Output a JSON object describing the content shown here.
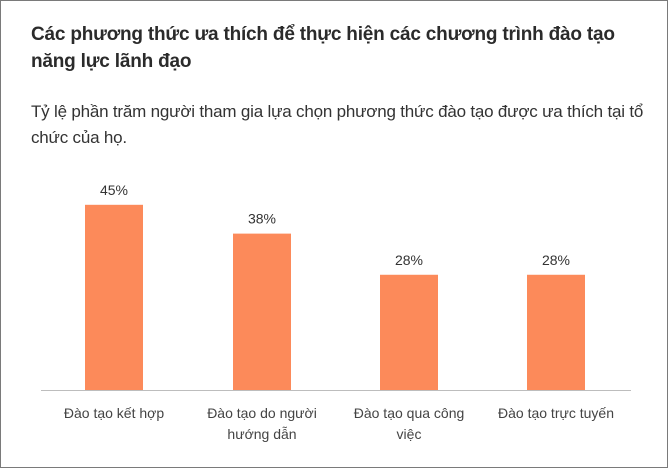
{
  "title": "Các phương thức ưa thích để thực hiện các chương trình đào tạo năng lực lãnh đạo",
  "subtitle": "Tỷ lệ phần trăm người tham gia lựa chọn phương thức đào tạo được ưa thích tại tổ chức của họ.",
  "chart_data": {
    "type": "bar",
    "categories": [
      [
        "Đào tạo kết hợp"
      ],
      [
        "Đào tạo do người",
        "hướng dẫn"
      ],
      [
        "Đào tạo qua công",
        "việc"
      ],
      [
        "Đào tạo trực tuyến"
      ]
    ],
    "values": [
      45,
      38,
      28,
      28
    ],
    "value_labels": [
      "45%",
      "38%",
      "28%",
      "28%"
    ],
    "ylim": [
      0,
      52
    ],
    "grid": false,
    "legend": "none",
    "bar_color": "#fc8a5a",
    "axis_color": "#bdbdbd"
  }
}
